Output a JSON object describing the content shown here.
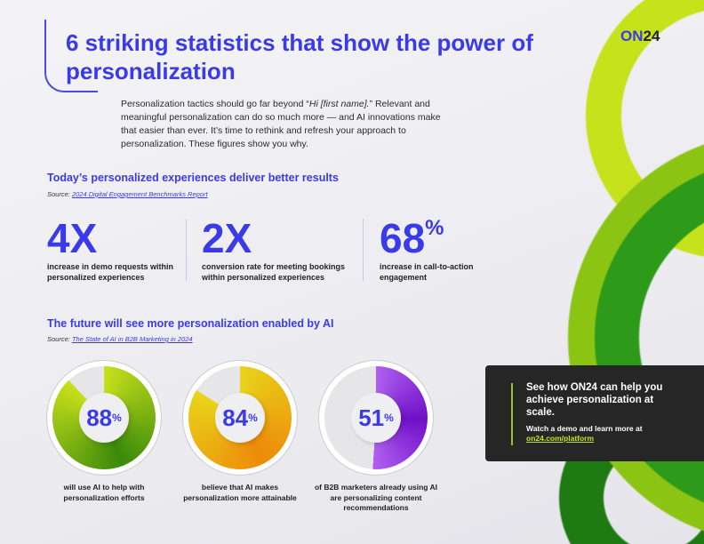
{
  "logo": {
    "part1": "ON",
    "part2": "24"
  },
  "title": "6 striking statistics that show the power of personalization",
  "intro": {
    "before": "Personalization tactics should go far beyond “",
    "italic": "Hi [first name].",
    "after": "” Relevant and meaningful personalization can do so much more — and AI innovations make that easier than ever. It’s time to rethink and refresh your approach to personalization. These figures show you why."
  },
  "section1": {
    "heading": "Today’s personalized experiences deliver better results",
    "source_label": "Source:",
    "source_link": "2024 Digital Engagement Benchmarks Report",
    "stats": [
      {
        "value": "4X",
        "suffix": "",
        "label": "increase in demo requests within personalized experiences"
      },
      {
        "value": "2X",
        "suffix": "",
        "label": "conversion rate for meeting bookings within personalized experiences"
      },
      {
        "value": "68",
        "suffix": "%",
        "label": "increase in call-to-action engagement"
      }
    ]
  },
  "section2": {
    "heading": "The future will see more personalization enabled by AI",
    "source_label": "Source:",
    "source_link": "The State of AI in B2B Marketing in 2024",
    "donuts": [
      {
        "value": 88,
        "text": "88",
        "suffix": "%",
        "label": "will use AI to help with personalization efforts",
        "colors": [
          "#c8e01a",
          "#3a8a0a"
        ]
      },
      {
        "value": 84,
        "text": "84",
        "suffix": "%",
        "label": "believe that AI makes personalization more attainable",
        "colors": [
          "#e8d41a",
          "#ee8a0a"
        ]
      },
      {
        "value": 51,
        "text": "51",
        "suffix": "%",
        "label": "of B2B marketers already using AI are personalizing content recommendations",
        "colors": [
          "#b060f0",
          "#7010c8"
        ]
      }
    ]
  },
  "cta": {
    "title": "See how ON24 can help you achieve personalization at scale.",
    "text": "Watch a demo and learn more at",
    "link": "on24.com/platform"
  }
}
